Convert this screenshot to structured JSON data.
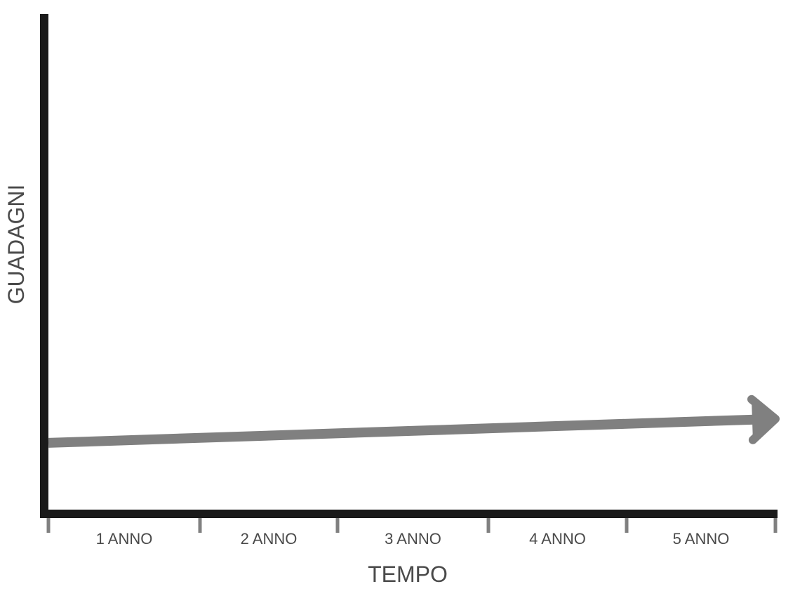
{
  "chart_data": {
    "type": "line",
    "title": "",
    "xlabel": "TEMPO",
    "ylabel": "GUADAGNI",
    "categories": [
      "1 ANNO",
      "2 ANNO",
      "3 ANNO",
      "4 ANNO",
      "5 ANNO"
    ],
    "xlim": [
      0,
      5
    ],
    "ylim": [
      0,
      10
    ],
    "grid": false,
    "series": [
      {
        "x": [
          0,
          5
        ],
        "y": [
          1.42,
          1.9
        ]
      }
    ],
    "colors": {
      "axis": "#1a1a1a",
      "trend": "#808080",
      "ticks": "#808080",
      "text": "#4a4a4a"
    }
  }
}
